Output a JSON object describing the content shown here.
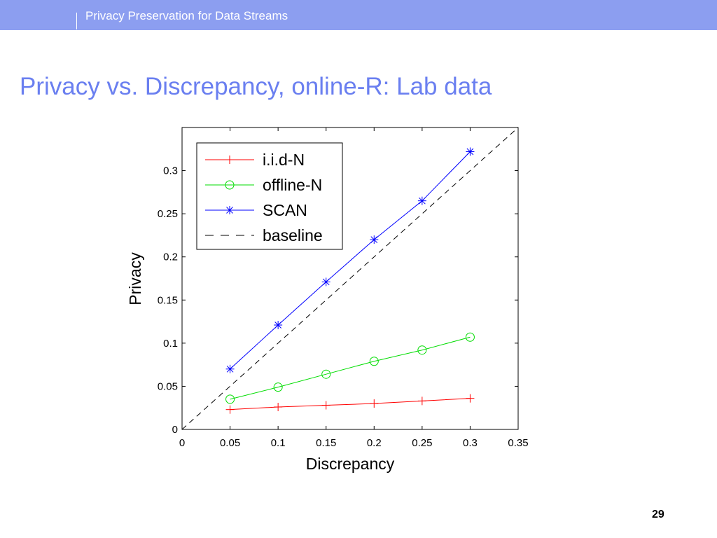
{
  "header": {
    "title": "Privacy Preservation for Data Streams",
    "bar_color": "#8c9ef0"
  },
  "slide": {
    "title": "Privacy vs. Discrepancy, online-R: Lab data",
    "title_color": "#6a7ff0",
    "page_number": "29"
  },
  "chart_data": {
    "type": "line",
    "title": "",
    "xlabel": "Discrepancy",
    "ylabel": "Privacy",
    "xlim": [
      0,
      0.35
    ],
    "ylim": [
      0,
      0.35
    ],
    "xticks": [
      "0",
      "0.05",
      "0.1",
      "0.15",
      "0.2",
      "0.25",
      "0.3",
      "0.35"
    ],
    "yticks": [
      "0",
      "0.05",
      "0.1",
      "0.15",
      "0.2",
      "0.25",
      "0.3"
    ],
    "grid": false,
    "legend_position": "top-left",
    "x": [
      0.05,
      0.1,
      0.15,
      0.2,
      0.25,
      0.3
    ],
    "series": [
      {
        "name": "i.i.d-N",
        "color": "#ff0000",
        "marker": "plus",
        "style": "solid",
        "values": [
          0.023,
          0.026,
          0.028,
          0.03,
          0.033,
          0.036
        ]
      },
      {
        "name": "offline-N",
        "color": "#00dd00",
        "marker": "circle",
        "style": "solid",
        "values": [
          0.035,
          0.049,
          0.064,
          0.079,
          0.092,
          0.107
        ]
      },
      {
        "name": "SCAN",
        "color": "#0000ff",
        "marker": "asterisk",
        "style": "solid",
        "values": [
          0.07,
          0.121,
          0.171,
          0.22,
          0.265,
          0.322
        ]
      },
      {
        "name": "baseline",
        "color": "#000000",
        "marker": "none",
        "style": "dashed",
        "x": [
          0,
          0.35
        ],
        "values": [
          0,
          0.35
        ]
      }
    ]
  }
}
